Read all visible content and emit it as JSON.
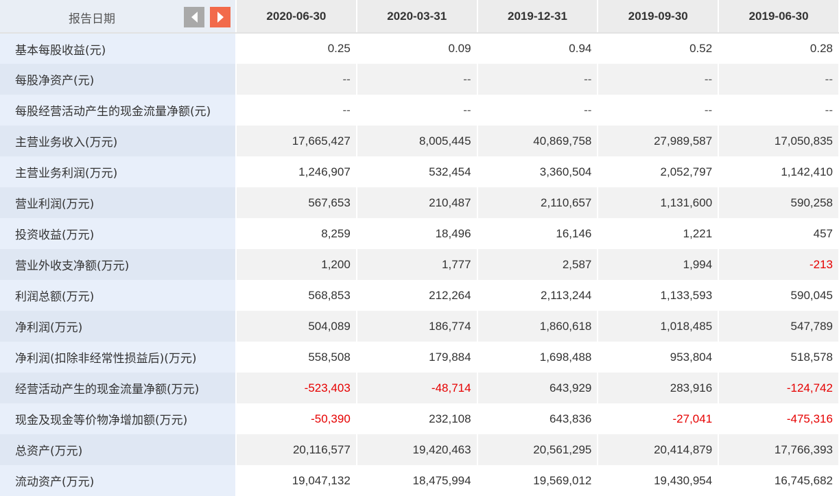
{
  "header": {
    "label": "报告日期",
    "dates": [
      "2020-06-30",
      "2020-03-31",
      "2019-12-31",
      "2019-09-30",
      "2019-06-30"
    ]
  },
  "colors": {
    "negative": "#e60000",
    "nav_prev": "#a9a9a9",
    "nav_next": "#f26a4b"
  },
  "icons": {
    "prev": "triangle-left-icon",
    "next": "triangle-right-icon"
  },
  "rows": [
    {
      "label": "基本每股收益(元)",
      "values": [
        "0.25",
        "0.09",
        "0.94",
        "0.52",
        "0.28"
      ]
    },
    {
      "label": "每股净资产(元)",
      "values": [
        "--",
        "--",
        "--",
        "--",
        "--"
      ]
    },
    {
      "label": "每股经营活动产生的现金流量净额(元)",
      "values": [
        "--",
        "--",
        "--",
        "--",
        "--"
      ]
    },
    {
      "label": "主营业务收入(万元)",
      "values": [
        "17,665,427",
        "8,005,445",
        "40,869,758",
        "27,989,587",
        "17,050,835"
      ]
    },
    {
      "label": "主营业务利润(万元)",
      "values": [
        "1,246,907",
        "532,454",
        "3,360,504",
        "2,052,797",
        "1,142,410"
      ]
    },
    {
      "label": "营业利润(万元)",
      "values": [
        "567,653",
        "210,487",
        "2,110,657",
        "1,131,600",
        "590,258"
      ]
    },
    {
      "label": "投资收益(万元)",
      "values": [
        "8,259",
        "18,496",
        "16,146",
        "1,221",
        "457"
      ]
    },
    {
      "label": "营业外收支净额(万元)",
      "values": [
        "1,200",
        "1,777",
        "2,587",
        "1,994",
        "-213"
      ]
    },
    {
      "label": "利润总额(万元)",
      "values": [
        "568,853",
        "212,264",
        "2,113,244",
        "1,133,593",
        "590,045"
      ]
    },
    {
      "label": "净利润(万元)",
      "values": [
        "504,089",
        "186,774",
        "1,860,618",
        "1,018,485",
        "547,789"
      ]
    },
    {
      "label": "净利润(扣除非经常性损益后)(万元)",
      "values": [
        "558,508",
        "179,884",
        "1,698,488",
        "953,804",
        "518,578"
      ]
    },
    {
      "label": "经营活动产生的现金流量净额(万元)",
      "values": [
        "-523,403",
        "-48,714",
        "643,929",
        "283,916",
        "-124,742"
      ]
    },
    {
      "label": "现金及现金等价物净增加额(万元)",
      "values": [
        "-50,390",
        "232,108",
        "643,836",
        "-27,041",
        "-475,316"
      ]
    },
    {
      "label": "总资产(万元)",
      "values": [
        "20,116,577",
        "19,420,463",
        "20,561,295",
        "20,414,879",
        "17,766,393"
      ]
    },
    {
      "label": "流动资产(万元)",
      "values": [
        "19,047,132",
        "18,475,994",
        "19,569,012",
        "19,430,954",
        "16,745,682"
      ]
    }
  ]
}
